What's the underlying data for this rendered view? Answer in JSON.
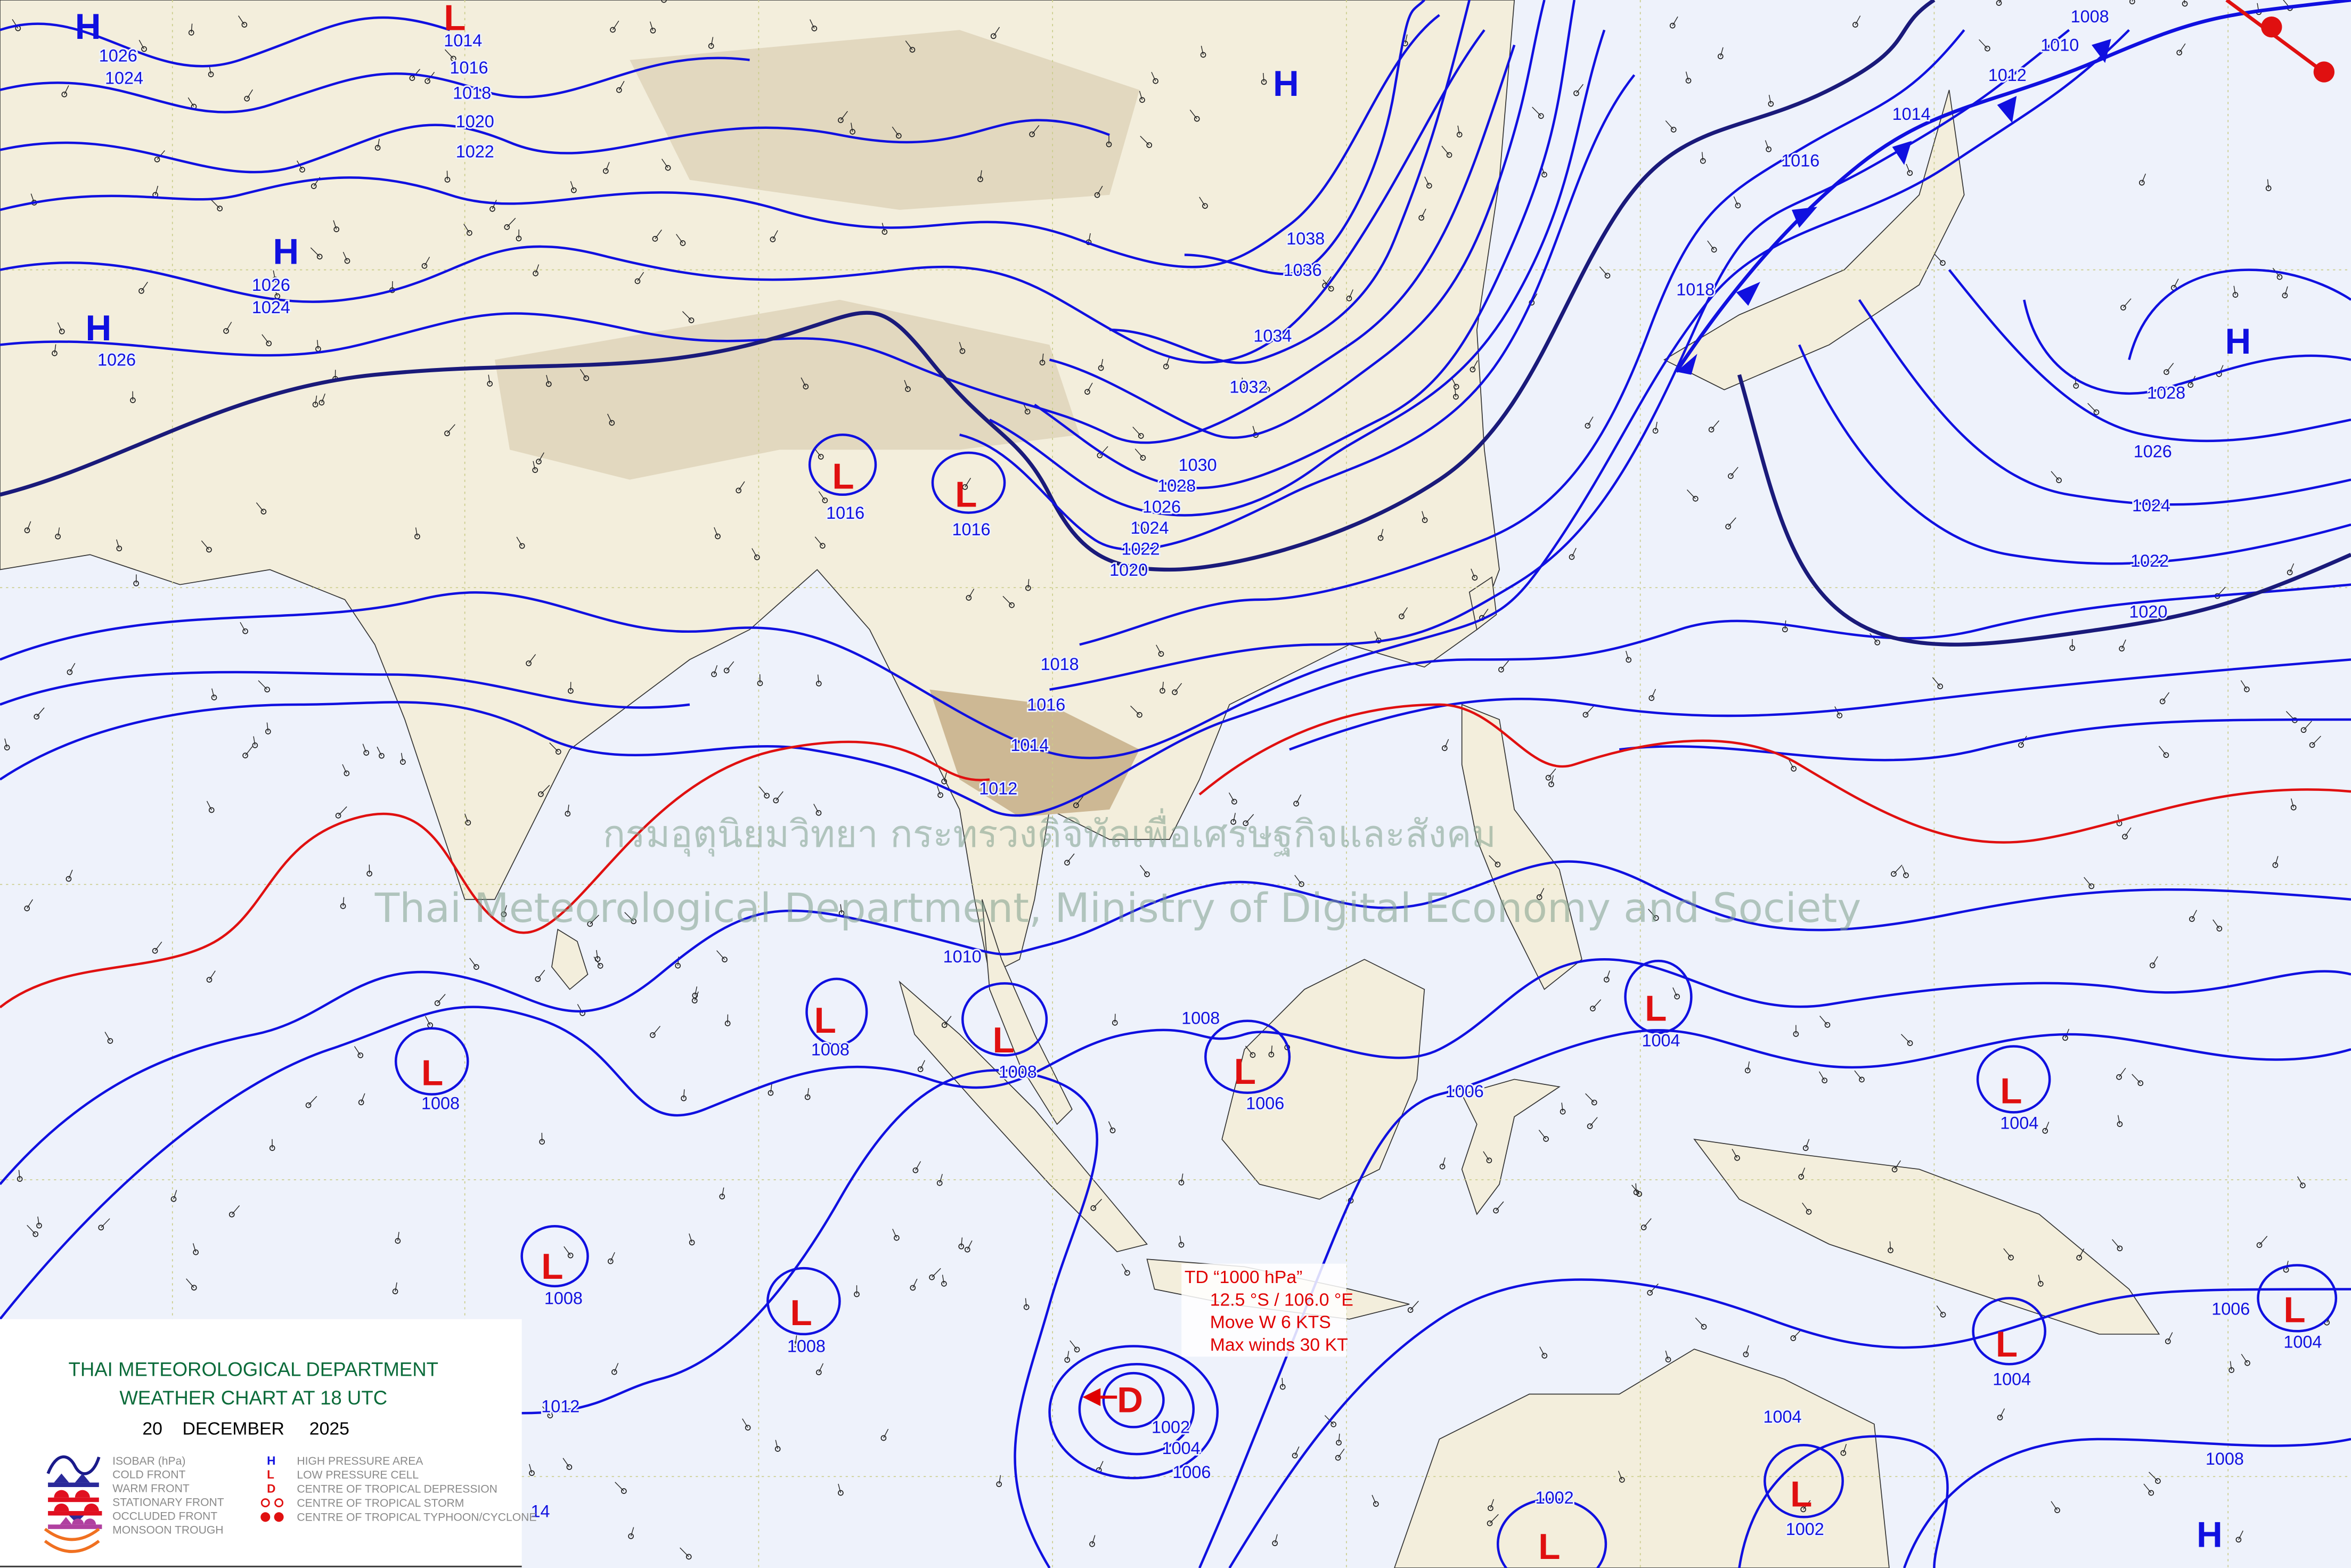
{
  "legend": {
    "title_line1": "THAI METEOROLOGICAL DEPARTMENT",
    "title_line2": "WEATHER CHART AT   18  UTC",
    "date": "20    DECEMBER     2025",
    "items_left": [
      "ISOBAR (hPa)",
      "COLD FRONT",
      "WARM FRONT",
      "STATIONARY FRONT",
      "OCCLUDED FRONT",
      "MONSOON TROUGH"
    ],
    "items_right": [
      "HIGH PRESSURE AREA",
      "LOW PRESSURE CELL",
      "CENTRE OF TROPICAL DEPRESSION",
      "CENTRE OF TROPICAL STORM",
      "CENTRE OF TROPICAL TYPHOON/CYCLONE"
    ],
    "symbols_right": [
      "H",
      "L",
      "D"
    ]
  },
  "watermark": {
    "thai": "กรมอุตุนิยมวิทยา กระทรวงดิจิทัลเพื่อเศรษฐกิจและสังคม",
    "english": "Thai Meteorological Department, Ministry of Digital Economy and Society"
  },
  "tropical_depression": {
    "line1": "TD “1000 hPa”",
    "line2": "12.5 °S / 106.0 °E",
    "line3": "Move W 6 KTS",
    "line4": "Max winds 30 KT",
    "movement_direction": "W"
  },
  "pressure_centers": [
    {
      "symbol": "H"
    },
    {
      "symbol": "H"
    },
    {
      "symbol": "H"
    },
    {
      "symbol": "H"
    },
    {
      "symbol": "H"
    },
    {
      "symbol": "H"
    },
    {
      "symbol": "L"
    },
    {
      "symbol": "L"
    },
    {
      "symbol": "L"
    },
    {
      "symbol": "L"
    },
    {
      "symbol": "L"
    },
    {
      "symbol": "L"
    },
    {
      "symbol": "L"
    },
    {
      "symbol": "L"
    },
    {
      "symbol": "L"
    },
    {
      "symbol": "L"
    },
    {
      "symbol": "L"
    },
    {
      "symbol": "L"
    },
    {
      "symbol": "L"
    },
    {
      "symbol": "L"
    },
    {
      "symbol": "L"
    },
    {
      "symbol": "D"
    }
  ],
  "isobar_labels": [
    "1026",
    "1024",
    "1014",
    "1016",
    "1018",
    "1020",
    "1022",
    "1026",
    "1024",
    "1026",
    "1038",
    "1036",
    "1034",
    "1032",
    "1030",
    "1028",
    "1026",
    "1024",
    "1022",
    "1020",
    "1018",
    "1016",
    "1014",
    "1012",
    "1010",
    "1008",
    "1008",
    "1008",
    "1008",
    "1006",
    "1006",
    "1004",
    "1004",
    "1008",
    "1008",
    "1012",
    "1002",
    "1004",
    "1006",
    "1004",
    "1004",
    "1002",
    "1002",
    "1004",
    "1006",
    "1008",
    "1016",
    "1018",
    "1014",
    "1012",
    "1010",
    "1008",
    "1028",
    "1026",
    "1024",
    "1022",
    "1020",
    "1016",
    "1016",
    "14"
  ],
  "colors": {
    "isobar": "#1010e0",
    "isobar_major": "#1a1a7a",
    "trough_isobar": "#e01010",
    "high": "#1010e0",
    "low": "#e01010",
    "land": "#f3eedc",
    "ocean": "#eef2fb",
    "legend_title": "#0b6b3a"
  }
}
